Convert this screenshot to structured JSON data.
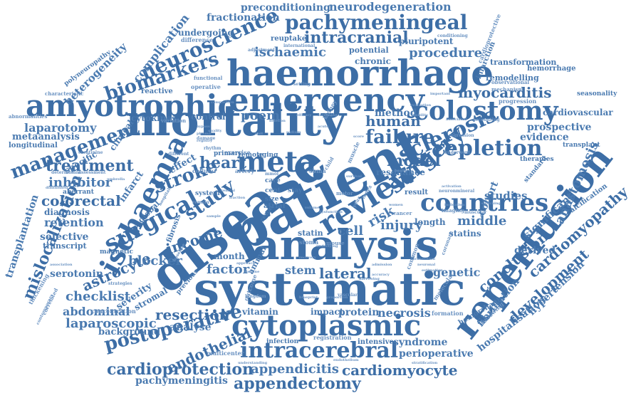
{
  "colors": {
    "word": "#4a7ab0",
    "word_dark": "#3d6ea6",
    "word_light": "#6b93c2",
    "background": "#ffffff"
  },
  "words": {
    "mortality": "mortality",
    "patient": "patient",
    "disease": "disease",
    "analysis": "analysis",
    "systematic": "systematic",
    "haemorrhage": "haemorrhage",
    "emergency": "emergency",
    "amyotrophic": "amyotrophic",
    "reperfusion": "reperfusion",
    "cytoplasmic": "cytoplasmic",
    "intracerebral": "intracerebral",
    "review": "review",
    "meta": "meta",
    "ischaemia": "ischaemia",
    "surgical": "surgical",
    "neuroscience": "neuroscience",
    "pachymeningeal": "pachymeningeal",
    "biomarkers": "biomarkers",
    "colostomy": "colostomy",
    "countries": "countries",
    "repletion": "repletion",
    "sclerosis": "sclerosis",
    "management": "management",
    "postoperative": "postoperative",
    "cardioprotection": "cardioprotection",
    "appendectomy": "appendectomy",
    "appendicitis": "appendicitis",
    "cardiomyocyte": "cardiomyocyte",
    "pachymeningitis": "pachymeningitis",
    "mislocalization": "mislocalization",
    "stroke": "stroke",
    "surgery": "surgery",
    "study": "study",
    "heart": "heart",
    "failure": "failure",
    "model": "model",
    "human": "human",
    "myocarditis": "myocarditis",
    "ischaemic": "ischaemic",
    "intracranial": "intracranial",
    "procedure": "procedure",
    "neurodegeneration": "neurodegeneration",
    "preconditioning": "preconditioning",
    "fractionation": "fractionation",
    "complication": "complication",
    "heterogeneity": "heterogeneity",
    "laparotomy": "laparotomy",
    "metaanalysis": "metaanalysis",
    "longitudinal": "longitudinal",
    "abnormalities": "abnormalities",
    "characteristic": "characteristic",
    "polyneuropathy": "polyneuropathy",
    "transplantation": "transplantation",
    "treatment": "treatment",
    "inhibitor": "inhibitor",
    "colorectal": "colorectal",
    "diagnosis": "diagnosis",
    "retention": "retention",
    "selective": "selective",
    "transcript": "transcript",
    "serotonin": "serotonin",
    "astrocyte": "astrocyte",
    "checklist": "checklist",
    "abdominal": "abdominal",
    "laparoscopic": "laparoscopic",
    "background": "background",
    "resection": "resection",
    "analyse": "analyse",
    "endothelial": "endothelial",
    "blocker": "blocker",
    "income": "income",
    "factor": "factor",
    "lateral": "lateral",
    "stem": "stem",
    "genetic": "genetic",
    "development": "development",
    "conclusion": "conclusion",
    "cardiomyopathy": "cardiomyopathy",
    "anastomosis": "anastomosis",
    "significant": "significant",
    "hypertension": "hypertension",
    "hospitalisation": "hospitalisation",
    "fibrillation": "fibrillation",
    "derived": "derived",
    "protein": "protein",
    "necrosis": "necrosis",
    "syndrome": "syndrome",
    "perioperative": "perioperative",
    "middle": "middle",
    "statins": "statins",
    "risk": "risk",
    "injury": "injury",
    "cell": "cell",
    "studies": "studies",
    "cohort": "cohort",
    "prospective": "prospective",
    "evidence": "evidence",
    "cardiovascular": "cardiovascular",
    "transformation": "transformation",
    "remodelling": "remodelling",
    "hemorrhage": "hemorrhage",
    "method": "method",
    "poem": "poem",
    "control": "control",
    "cytokines": "cytokines",
    "reactive": "reactive",
    "chronic": "chronic",
    "potential": "potential",
    "pluripotent": "pluripotent",
    "undergoing": "undergoing",
    "reuptake": "reuptake",
    "specific": "specific",
    "clinical": "clinical",
    "infarct": "infarct",
    "effect": "effect",
    "global": "global",
    "month": "month",
    "vitamin": "vitamin",
    "impact": "impact",
    "severity": "severity",
    "stromal": "stromal",
    "infection": "infection",
    "intensive": "intensive",
    "resonance": "resonance",
    "length": "length",
    "result": "result",
    "statin": "statin",
    "magnetic": "magnetic",
    "thickening": "thickening",
    "aberrant": "aberrant",
    "concentration": "concentration",
    "multicenter": "multicenter",
    "registration": "registration",
    "formation": "formation",
    "hemorrhagic": "hemorrhagic",
    "calcification": "calcification",
    "standard": "standard",
    "seasonality": "seasonality",
    "progression": "progression",
    "transplant": "transplant",
    "therapies": "therapies",
    "infarction": "infarction",
    "observational": "observational",
    "mechanism": "mechanism",
    "cardioprotective": "cardioprotective",
    "exercise": "exercise",
    "primary": "primary",
    "fibrosis": "fibrosis",
    "system": "system",
    "cellular": "cellular",
    "operative": "operative",
    "functional": "functional",
    "variation": "variation",
    "difference": "difference",
    "adjustment": "adjustment",
    "international": "international",
    "conditioning": "conditioning",
    "creatinine": "creatinine",
    "assessment": "assessment",
    "determinant": "determinant",
    "diminished": "diminished",
    "correlated": "correlated",
    "contemporary": "contemporary",
    "strategies": "strategies",
    "previous": "previous",
    "outcome": "outcome",
    "animal": "animal",
    "atrial": "atrial",
    "renal": "renal",
    "stoma": "stoma",
    "size": "size",
    "care": "care",
    "cent": "cent",
    "stay": "stay",
    "sbma": "sbma",
    "remote": "remote",
    "aging": "aging",
    "artery": "artery",
    "different": "different",
    "neuron": "neuron",
    "mineral": "mineral",
    "imaging": "imaging",
    "muscular": "muscular",
    "health": "health",
    "cancer": "cancer",
    "common": "common",
    "coronary": "coronary",
    "molecular": "molecular",
    "following": "following",
    "underwent": "underwent",
    "accounting": "accounting",
    "regression": "regression",
    "motor": "motor",
    "muscle": "muscle",
    "kidney": "kidney",
    "sample": "sample",
    "rhythm": "rhythm",
    "damage": "damage",
    "hospital": "hospital",
    "baseline": "baseline",
    "remain": "remain",
    "mouse": "mouse",
    "underlying": "underlying",
    "blueprint": "blueprint",
    "stratification": "stratification",
    "understanding": "understanding",
    "kingdom": "kingdom",
    "vascular": "vascular",
    "endothelium": "endothelium",
    "neuronal": "neuronal",
    "translation": "translation",
    "association": "association",
    "umbrella": "umbrella",
    "approach": "approach",
    "fraction": "fraction",
    "important": "important",
    "setting": "setting",
    "child": "child",
    "year": "year",
    "index": "index",
    "comparison": "comparison",
    "sodium": "sodium",
    "mmol": "mmol",
    "central": "central",
    "unit": "unit",
    "quality": "quality",
    "mobility": "mobility",
    "switching": "switching",
    "indication": "indication",
    "activation": "activation",
    "recovery": "recovery",
    "admission": "admission",
    "score": "score",
    "plasma": "plasma",
    "registry": "registry",
    "dysfunction": "dysfunction",
    "women": "women",
    "volume": "volume",
    "decline": "decline",
    "estimation": "estimation",
    "proportion": "proportion",
    "narrowing": "narrowing",
    "accuracy": "accuracy",
    "evaluation": "evaluation",
    "deletion": "deletion",
    "associated": "associated",
    "bypass": "bypass",
    "acute": "acute",
    "efficacy": "efficacy",
    "screening": "screening",
    "survival": "survival"
  }
}
